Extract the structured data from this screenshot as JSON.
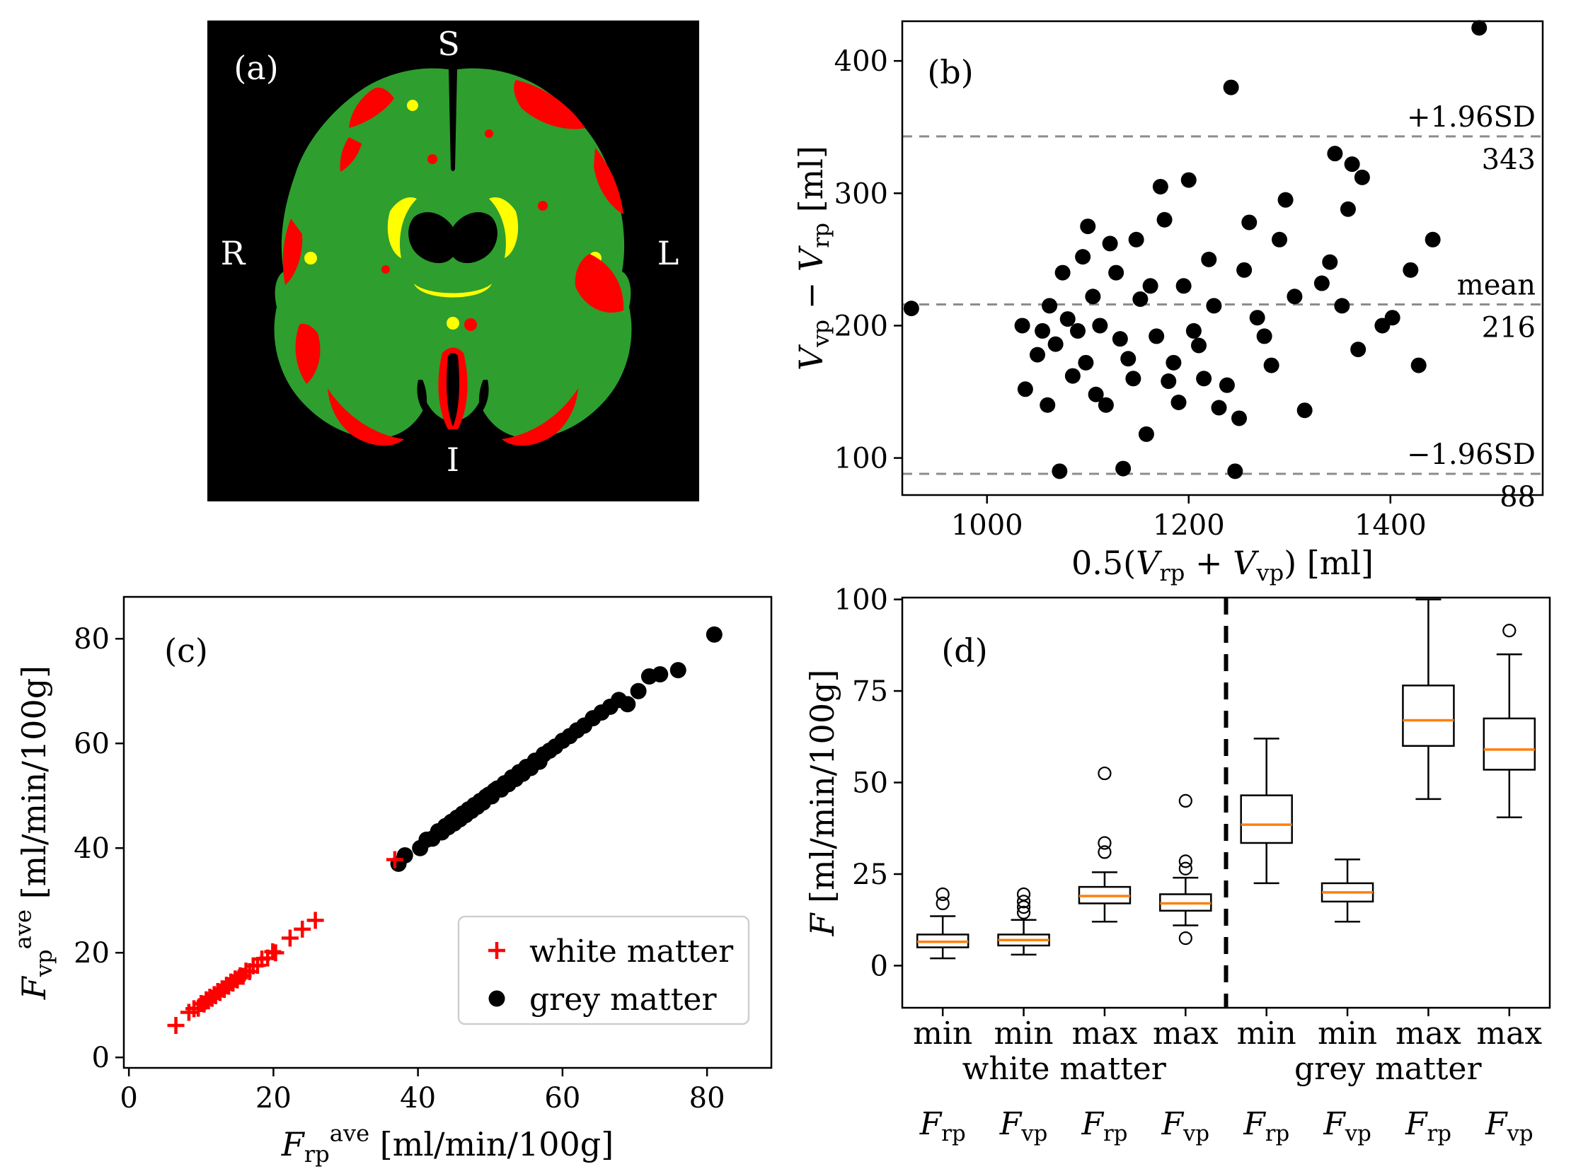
{
  "figure": {
    "background": "#ffffff"
  },
  "panel_a": {
    "label": "(a)",
    "orientation": {
      "top": "S",
      "bottom": "I",
      "left": "R",
      "right": "L"
    },
    "colors": {
      "background": "#000000",
      "green": "#2e9e2e",
      "red": "#ff0000",
      "yellow": "#ffff00",
      "black": "#000000"
    }
  },
  "chart_data": [
    {
      "id": "b",
      "type": "scatter",
      "panel_label": "(b)",
      "xlabel_segments": [
        {
          "t": "0.5("
        },
        {
          "t": "V",
          "i": true
        },
        {
          "t": "rp",
          "sub": true
        },
        {
          "t": " + "
        },
        {
          "t": "V",
          "i": true
        },
        {
          "t": "vp",
          "sub": true
        },
        {
          "t": ") [ml]"
        }
      ],
      "ylabel_segments": [
        {
          "t": "V",
          "i": true
        },
        {
          "t": "vp",
          "sub": true
        },
        {
          "t": " − "
        },
        {
          "t": "V",
          "i": true
        },
        {
          "t": "rp",
          "sub": true
        },
        {
          "t": " [ml]"
        }
      ],
      "xlim": [
        916,
        1551
      ],
      "ylim": [
        72,
        430
      ],
      "xticks": [
        1000,
        1200,
        1400
      ],
      "yticks": [
        100,
        200,
        300,
        400
      ],
      "grid": false,
      "marker": {
        "shape": "circle",
        "color": "#000000",
        "radius": 11
      },
      "hline_color": "#8c8c8c",
      "hlines": [
        {
          "y": 343,
          "label_top": "+1.96SD",
          "label_bottom": "343"
        },
        {
          "y": 216,
          "label_top": "mean",
          "label_bottom": "216"
        },
        {
          "y": 88,
          "label_top": "−1.96SD",
          "label_bottom": "88"
        }
      ],
      "points": [
        [
          925,
          213
        ],
        [
          1035,
          200
        ],
        [
          1038,
          152
        ],
        [
          1050,
          178
        ],
        [
          1055,
          196
        ],
        [
          1060,
          140
        ],
        [
          1062,
          215
        ],
        [
          1068,
          186
        ],
        [
          1072,
          90
        ],
        [
          1075,
          240
        ],
        [
          1080,
          205
        ],
        [
          1085,
          162
        ],
        [
          1090,
          196
        ],
        [
          1095,
          252
        ],
        [
          1098,
          172
        ],
        [
          1100,
          275
        ],
        [
          1105,
          222
        ],
        [
          1108,
          148
        ],
        [
          1112,
          200
        ],
        [
          1118,
          140
        ],
        [
          1122,
          262
        ],
        [
          1128,
          240
        ],
        [
          1132,
          190
        ],
        [
          1135,
          92
        ],
        [
          1140,
          175
        ],
        [
          1145,
          160
        ],
        [
          1148,
          265
        ],
        [
          1152,
          220
        ],
        [
          1158,
          118
        ],
        [
          1162,
          230
        ],
        [
          1168,
          192
        ],
        [
          1172,
          305
        ],
        [
          1176,
          280
        ],
        [
          1180,
          158
        ],
        [
          1185,
          172
        ],
        [
          1190,
          142
        ],
        [
          1195,
          230
        ],
        [
          1200,
          310
        ],
        [
          1205,
          196
        ],
        [
          1210,
          185
        ],
        [
          1215,
          160
        ],
        [
          1220,
          250
        ],
        [
          1225,
          215
        ],
        [
          1230,
          138
        ],
        [
          1238,
          155
        ],
        [
          1242,
          380
        ],
        [
          1246,
          90
        ],
        [
          1250,
          130
        ],
        [
          1255,
          242
        ],
        [
          1260,
          278
        ],
        [
          1268,
          206
        ],
        [
          1275,
          192
        ],
        [
          1282,
          170
        ],
        [
          1290,
          265
        ],
        [
          1296,
          295
        ],
        [
          1305,
          222
        ],
        [
          1315,
          136
        ],
        [
          1332,
          232
        ],
        [
          1340,
          248
        ],
        [
          1345,
          330
        ],
        [
          1352,
          215
        ],
        [
          1358,
          288
        ],
        [
          1362,
          322
        ],
        [
          1368,
          182
        ],
        [
          1372,
          312
        ],
        [
          1392,
          200
        ],
        [
          1402,
          206
        ],
        [
          1420,
          242
        ],
        [
          1428,
          170
        ],
        [
          1442,
          265
        ],
        [
          1488,
          425
        ]
      ]
    },
    {
      "id": "c",
      "type": "scatter",
      "panel_label": "(c)",
      "xlabel_segments": [
        {
          "t": "F",
          "i": true
        },
        {
          "t": "rp",
          "sub": true
        },
        {
          "t": "ave",
          "sup": true
        },
        {
          "t": " [ml/min/100g]"
        }
      ],
      "ylabel_segments": [
        {
          "t": "F",
          "i": true
        },
        {
          "t": "vp",
          "sub": true
        },
        {
          "t": "ave",
          "sup": true
        },
        {
          "t": " [ml/min/100g]"
        }
      ],
      "xlim": [
        -0.7,
        88.9
      ],
      "ylim": [
        -2,
        88
      ],
      "xticks": [
        0,
        20,
        40,
        60,
        80
      ],
      "yticks": [
        0,
        20,
        40,
        60,
        80
      ],
      "grid": false,
      "legend": {
        "position": "lower right",
        "border_color": "#cfcfcf"
      },
      "series": [
        {
          "name": "grey matter",
          "marker": "circle",
          "color": "#000000",
          "points": [
            [
              37.3,
              37.0
            ],
            [
              38.2,
              38.6
            ],
            [
              40.3,
              40.0
            ],
            [
              41.2,
              41.6
            ],
            [
              42.0,
              41.8
            ],
            [
              42.8,
              43.2
            ],
            [
              43.3,
              43.0
            ],
            [
              43.8,
              44.2
            ],
            [
              44.2,
              44.0
            ],
            [
              44.6,
              45.0
            ],
            [
              45.0,
              44.7
            ],
            [
              45.4,
              45.8
            ],
            [
              45.8,
              45.5
            ],
            [
              46.2,
              46.6
            ],
            [
              46.6,
              46.3
            ],
            [
              47.0,
              47.4
            ],
            [
              47.4,
              47.1
            ],
            [
              47.8,
              48.2
            ],
            [
              48.2,
              47.9
            ],
            [
              48.6,
              49.0
            ],
            [
              49.0,
              48.7
            ],
            [
              49.4,
              49.8
            ],
            [
              49.8,
              50.2
            ],
            [
              50.2,
              49.9
            ],
            [
              50.6,
              51.0
            ],
            [
              51.0,
              51.4
            ],
            [
              51.5,
              51.2
            ],
            [
              52.0,
              52.4
            ],
            [
              52.5,
              52.2
            ],
            [
              53.0,
              53.5
            ],
            [
              53.5,
              53.2
            ],
            [
              54.0,
              54.5
            ],
            [
              54.5,
              54.2
            ],
            [
              55.0,
              55.5
            ],
            [
              55.6,
              55.3
            ],
            [
              56.2,
              56.7
            ],
            [
              56.8,
              56.5
            ],
            [
              57.4,
              57.9
            ],
            [
              58.2,
              58.6
            ],
            [
              59.0,
              59.4
            ],
            [
              60.0,
              60.5
            ],
            [
              61.0,
              61.4
            ],
            [
              62.0,
              62.5
            ],
            [
              63.0,
              63.4
            ],
            [
              64.2,
              64.8
            ],
            [
              65.4,
              65.9
            ],
            [
              66.6,
              67.0
            ],
            [
              67.8,
              68.3
            ],
            [
              69.0,
              67.5
            ],
            [
              70.5,
              70.0
            ],
            [
              72.0,
              72.8
            ],
            [
              73.5,
              73.2
            ],
            [
              76.0,
              74.0
            ],
            [
              81.0,
              80.8
            ]
          ]
        },
        {
          "name": "white matter",
          "marker": "plus",
          "color": "#ff0000",
          "points": [
            [
              6.5,
              6.1
            ],
            [
              8.3,
              8.6
            ],
            [
              9.0,
              9.3
            ],
            [
              9.6,
              9.4
            ],
            [
              10.0,
              10.3
            ],
            [
              10.4,
              10.2
            ],
            [
              10.7,
              11.0
            ],
            [
              11.0,
              10.8
            ],
            [
              11.2,
              11.5
            ],
            [
              11.5,
              11.3
            ],
            [
              11.8,
              12.0
            ],
            [
              12.0,
              11.8
            ],
            [
              12.3,
              12.6
            ],
            [
              12.6,
              12.4
            ],
            [
              12.9,
              13.1
            ],
            [
              13.2,
              13.0
            ],
            [
              13.5,
              13.8
            ],
            [
              13.8,
              13.6
            ],
            [
              14.1,
              14.4
            ],
            [
              14.4,
              14.2
            ],
            [
              14.7,
              15.0
            ],
            [
              15.0,
              14.8
            ],
            [
              15.4,
              15.6
            ],
            [
              15.8,
              15.5
            ],
            [
              16.2,
              16.5
            ],
            [
              16.7,
              16.4
            ],
            [
              17.2,
              17.5
            ],
            [
              17.8,
              17.6
            ],
            [
              18.4,
              18.8
            ],
            [
              19.2,
              19.0
            ],
            [
              19.9,
              20.2
            ],
            [
              20.3,
              20.0
            ],
            [
              22.3,
              22.8
            ],
            [
              24.0,
              24.5
            ],
            [
              25.8,
              26.2
            ],
            [
              36.8,
              37.8
            ]
          ]
        }
      ]
    },
    {
      "id": "d",
      "type": "box",
      "panel_label": "(d)",
      "ylabel_segments": [
        {
          "t": "F",
          "i": true
        },
        {
          "t": " [ml/min/100g]"
        }
      ],
      "ylim": [
        -11.5,
        100.5
      ],
      "yticks": [
        0,
        25,
        50,
        75,
        100
      ],
      "median_color": "#ff7f0e",
      "separator_after_box": 4,
      "group_labels": [
        "white matter",
        "grey matter"
      ],
      "boxes": [
        {
          "group": "white matter",
          "stat": "min",
          "fsub": "rp",
          "whislo": 2.0,
          "q1": 5.0,
          "med": 6.5,
          "q3": 8.5,
          "whishi": 13.5,
          "fliers": [
            17.0,
            19.5
          ]
        },
        {
          "group": "white matter",
          "stat": "min",
          "fsub": "vp",
          "whislo": 3.0,
          "q1": 5.5,
          "med": 7.0,
          "q3": 8.5,
          "whishi": 12.5,
          "fliers": [
            14.5,
            16.0,
            17.5,
            19.5
          ]
        },
        {
          "group": "white matter",
          "stat": "max",
          "fsub": "rp",
          "whislo": 12.0,
          "q1": 17.0,
          "med": 19.0,
          "q3": 21.5,
          "whishi": 25.5,
          "fliers": [
            31.0,
            33.5,
            52.5
          ]
        },
        {
          "group": "white matter",
          "stat": "max",
          "fsub": "vp",
          "whislo": 11.0,
          "q1": 15.0,
          "med": 17.0,
          "q3": 19.5,
          "whishi": 24.0,
          "fliers": [
            7.5,
            26.5,
            28.5,
            45.0
          ]
        },
        {
          "group": "grey matter",
          "stat": "min",
          "fsub": "rp",
          "whislo": 22.5,
          "q1": 33.5,
          "med": 38.5,
          "q3": 46.5,
          "whishi": 62.0,
          "fliers": []
        },
        {
          "group": "grey matter",
          "stat": "min",
          "fsub": "vp",
          "whislo": 12.0,
          "q1": 17.5,
          "med": 20.0,
          "q3": 22.5,
          "whishi": 29.0,
          "fliers": []
        },
        {
          "group": "grey matter",
          "stat": "max",
          "fsub": "rp",
          "whislo": 45.5,
          "q1": 60.0,
          "med": 67.0,
          "q3": 76.5,
          "whishi": 100.0,
          "fliers": []
        },
        {
          "group": "grey matter",
          "stat": "max",
          "fsub": "vp",
          "whislo": 40.5,
          "q1": 53.5,
          "med": 59.0,
          "q3": 67.5,
          "whishi": 85.0,
          "fliers": [
            91.5
          ]
        }
      ]
    }
  ]
}
